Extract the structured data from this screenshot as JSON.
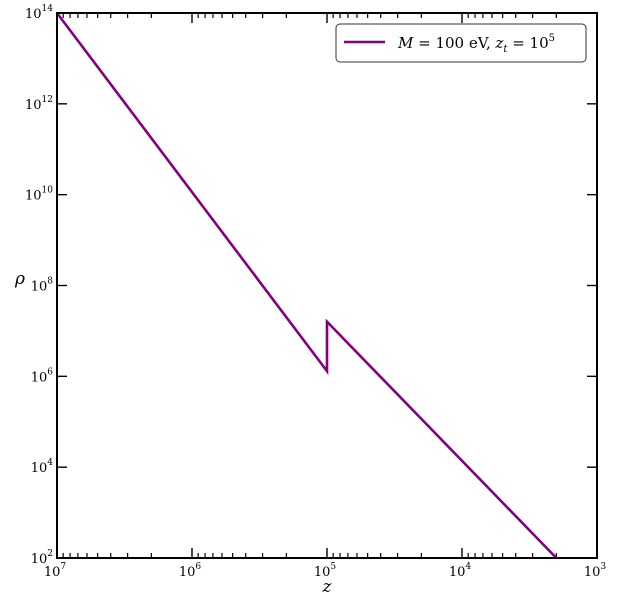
{
  "chart_data": {
    "type": "line",
    "title": "",
    "xlabel": "z",
    "ylabel": "ρ",
    "x_scale": "log",
    "y_scale": "log",
    "x_inverted": true,
    "xlim": [
      10000000,
      1000
    ],
    "ylim": [
      100,
      100000000000000
    ],
    "grid": false,
    "legend_position": "top-right",
    "x_ticks": [
      {
        "base": "10",
        "exp": "7",
        "value": 10000000
      },
      {
        "base": "10",
        "exp": "6",
        "value": 1000000
      },
      {
        "base": "10",
        "exp": "5",
        "value": 100000
      },
      {
        "base": "10",
        "exp": "4",
        "value": 10000
      },
      {
        "base": "10",
        "exp": "3",
        "value": 1000
      }
    ],
    "y_ticks": [
      {
        "base": "10",
        "exp": "2",
        "value": 100
      },
      {
        "base": "10",
        "exp": "4",
        "value": 10000
      },
      {
        "base": "10",
        "exp": "6",
        "value": 1000000
      },
      {
        "base": "10",
        "exp": "8",
        "value": 100000000
      },
      {
        "base": "10",
        "exp": "10",
        "value": 10000000000
      },
      {
        "base": "10",
        "exp": "12",
        "value": 1000000000000
      },
      {
        "base": "10",
        "exp": "14",
        "value": 100000000000000
      }
    ],
    "series": [
      {
        "name": "M = 100 eV, z_t = 10^5",
        "legend_parts": {
          "m": "M",
          "eq1": " = 100 eV, ",
          "z": "z",
          "sub": "t",
          "eq2": " = 10",
          "sup": "5"
        },
        "color": "#800080",
        "points": [
          {
            "x": 10000000,
            "y": 100000000000000
          },
          {
            "x": 100000,
            "y": 1300000
          },
          {
            "x": 100000,
            "y": 16000000
          },
          {
            "x": 2000,
            "y": 100
          }
        ]
      }
    ]
  }
}
